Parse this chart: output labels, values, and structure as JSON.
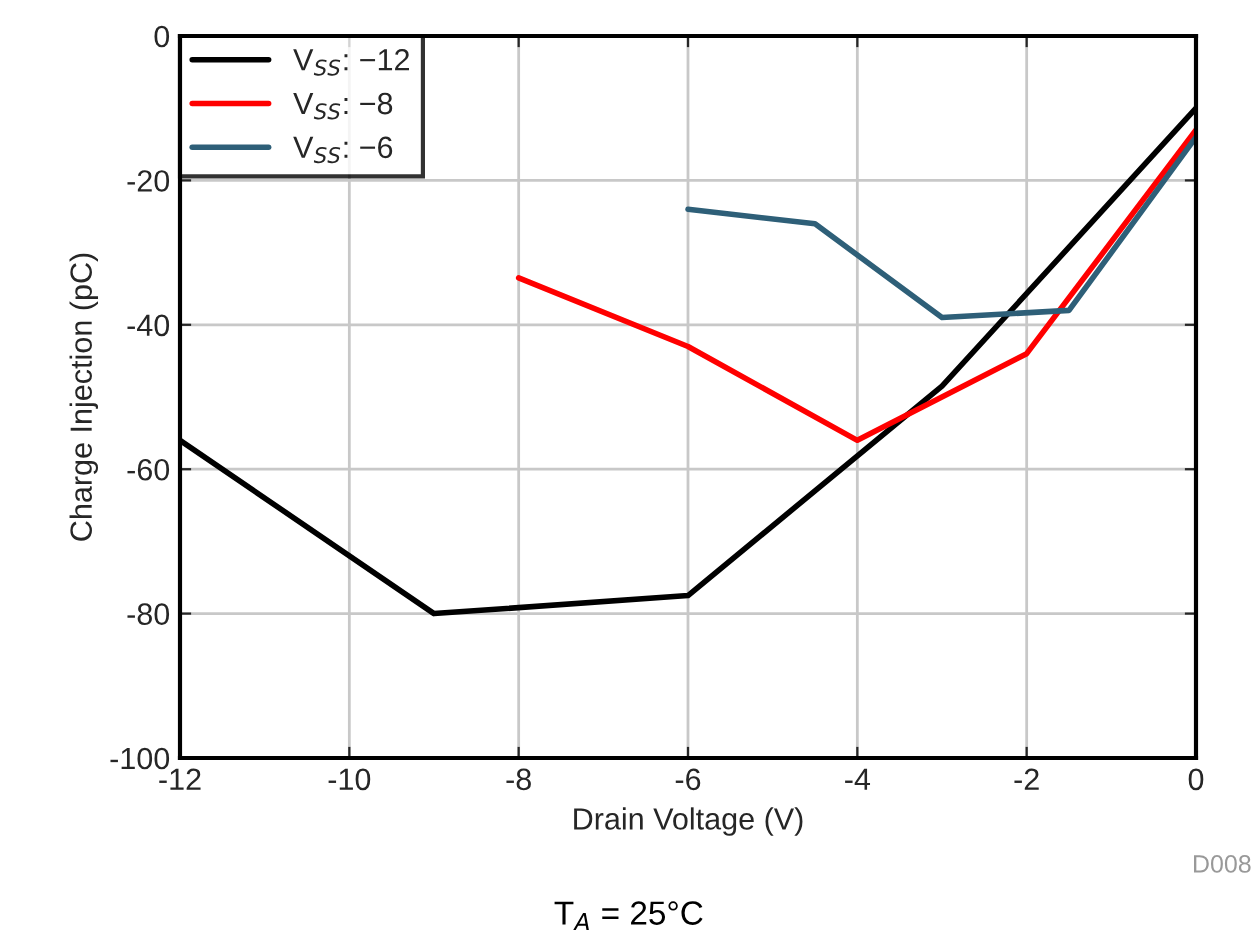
{
  "chart_data": {
    "type": "line",
    "xlabel": "Drain Voltage (V)",
    "ylabel": "Charge Injection (pC)",
    "xlim": [
      -12,
      0
    ],
    "xticks": [
      -12,
      -10,
      -8,
      -6,
      -4,
      -2,
      0
    ],
    "ylim": [
      -100,
      0
    ],
    "yticks": [
      -100,
      -80,
      -60,
      -40,
      -20,
      0
    ],
    "grid": true,
    "legend": "top left",
    "marker": "none",
    "line_style": "solid",
    "series": [
      {
        "name": "V$_{SS}$: −12",
        "color": "#000000",
        "x": [
          -12,
          -9,
          -6,
          -3,
          0
        ],
        "values": [
          -56,
          -80,
          -77.5,
          -48.5,
          -10
        ]
      },
      {
        "name": "V$_{SS}$: −8",
        "color": "#ff0000",
        "x": [
          -8,
          -6,
          -4,
          -2,
          0
        ],
        "values": [
          -33.5,
          -43,
          -56,
          -44,
          -13
        ]
      },
      {
        "name": "V$_{SS}$: −6",
        "color": "#2e5f78",
        "x": [
          -6,
          -4.5,
          -3,
          -1.5,
          0
        ],
        "values": [
          -24,
          -26,
          -39,
          -38,
          -14
        ]
      }
    ],
    "annotations": [
      "D008",
      "T$_{A}$ = 25°C"
    ]
  }
}
